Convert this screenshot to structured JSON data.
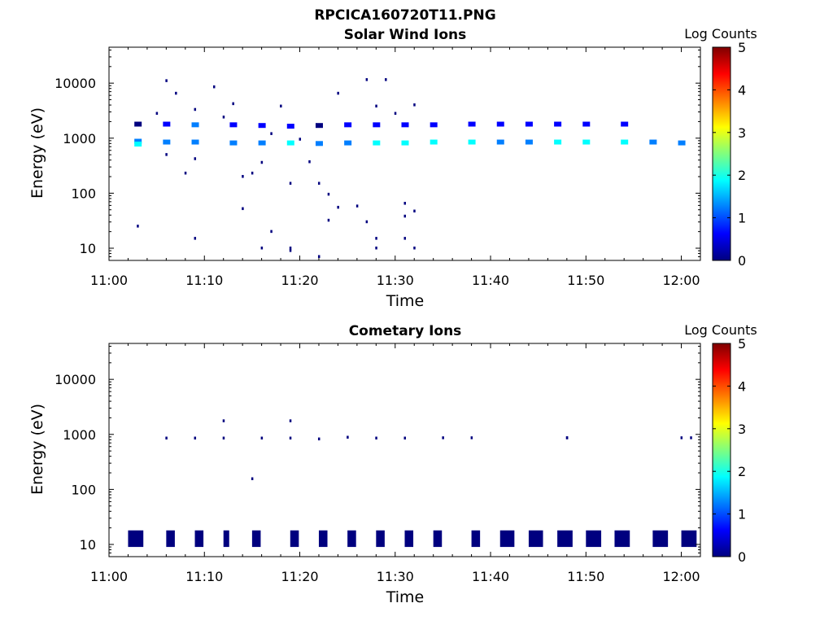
{
  "figure": {
    "title": "RPCICA160720T11.PNG",
    "colors": {
      "low": "#00007f",
      "scale": [
        "#00007f",
        "#0000ff",
        "#007fff",
        "#00ffff",
        "#7fff7f",
        "#ffff00",
        "#ff7f00",
        "#ff0000",
        "#7f0000"
      ]
    }
  },
  "chart_data": [
    {
      "type": "heatmap",
      "title": "Solar Wind Ions",
      "xlabel": "Time",
      "ylabel": "Energy (eV)",
      "yscale": "log",
      "xlim": [
        "11:00",
        "12:02"
      ],
      "ylim": [
        6,
        45000
      ],
      "xticks": [
        "11:00",
        "11:10",
        "11:20",
        "11:30",
        "11:40",
        "11:50",
        "12:00"
      ],
      "yticks": [
        "10",
        "100",
        "1000",
        "10000"
      ],
      "colorbar": {
        "label": "Log Counts",
        "min": 0,
        "max": 5,
        "ticks": [
          "0",
          "1",
          "2",
          "3",
          "4",
          "5"
        ]
      },
      "cells": [
        {
          "t": "11:03",
          "e": 1800,
          "v": 0.3
        },
        {
          "t": "11:03",
          "e": 880,
          "v": 1.5
        },
        {
          "t": "11:03",
          "e": 780,
          "v": 1.8
        },
        {
          "t": "11:06",
          "e": 1800,
          "v": 0.5
        },
        {
          "t": "11:06",
          "e": 850,
          "v": 1.2
        },
        {
          "t": "11:09",
          "e": 1750,
          "v": 1.1
        },
        {
          "t": "11:09",
          "e": 850,
          "v": 1.3
        },
        {
          "t": "11:13",
          "e": 1750,
          "v": 0.4
        },
        {
          "t": "11:13",
          "e": 820,
          "v": 1.4
        },
        {
          "t": "11:16",
          "e": 1700,
          "v": 0.6
        },
        {
          "t": "11:16",
          "e": 820,
          "v": 1.1
        },
        {
          "t": "11:19",
          "e": 1650,
          "v": 0.9
        },
        {
          "t": "11:19",
          "e": 820,
          "v": 1.6
        },
        {
          "t": "11:22",
          "e": 1700,
          "v": 0.3
        },
        {
          "t": "11:22",
          "e": 800,
          "v": 1.3
        },
        {
          "t": "11:25",
          "e": 1750,
          "v": 0.4
        },
        {
          "t": "11:25",
          "e": 820,
          "v": 1.5
        },
        {
          "t": "11:28",
          "e": 1750,
          "v": 0.4
        },
        {
          "t": "11:28",
          "e": 820,
          "v": 1.6
        },
        {
          "t": "11:31",
          "e": 1750,
          "v": 0.4
        },
        {
          "t": "11:31",
          "e": 820,
          "v": 1.8
        },
        {
          "t": "11:34",
          "e": 1750,
          "v": 0.6
        },
        {
          "t": "11:34",
          "e": 850,
          "v": 1.6
        },
        {
          "t": "11:38",
          "e": 1800,
          "v": 0.5
        },
        {
          "t": "11:38",
          "e": 850,
          "v": 1.6
        },
        {
          "t": "11:41",
          "e": 1800,
          "v": 0.6
        },
        {
          "t": "11:41",
          "e": 850,
          "v": 1.5
        },
        {
          "t": "11:44",
          "e": 1800,
          "v": 0.5
        },
        {
          "t": "11:44",
          "e": 850,
          "v": 1.4
        },
        {
          "t": "11:47",
          "e": 1800,
          "v": 0.4
        },
        {
          "t": "11:47",
          "e": 850,
          "v": 1.6
        },
        {
          "t": "11:50",
          "e": 1800,
          "v": 0.5
        },
        {
          "t": "11:50",
          "e": 850,
          "v": 1.6
        },
        {
          "t": "11:54",
          "e": 1800,
          "v": 0.4
        },
        {
          "t": "11:54",
          "e": 850,
          "v": 1.6
        },
        {
          "t": "11:57",
          "e": 850,
          "v": 1.4
        },
        {
          "t": "12:00",
          "e": 820,
          "v": 1.2
        }
      ],
      "sparse": [
        {
          "t": "11:05",
          "e": 2800
        },
        {
          "t": "11:06",
          "e": 11000
        },
        {
          "t": "11:07",
          "e": 6500
        },
        {
          "t": "11:06",
          "e": 500
        },
        {
          "t": "11:08",
          "e": 230
        },
        {
          "t": "11:09",
          "e": 3300
        },
        {
          "t": "11:09",
          "e": 420
        },
        {
          "t": "11:11",
          "e": 8500
        },
        {
          "t": "11:12",
          "e": 2400
        },
        {
          "t": "11:13",
          "e": 4200
        },
        {
          "t": "11:14",
          "e": 200
        },
        {
          "t": "11:14",
          "e": 52
        },
        {
          "t": "11:15",
          "e": 230
        },
        {
          "t": "11:16",
          "e": 360
        },
        {
          "t": "11:17",
          "e": 1200
        },
        {
          "t": "11:18",
          "e": 3800
        },
        {
          "t": "11:19",
          "e": 150
        },
        {
          "t": "11:20",
          "e": 950
        },
        {
          "t": "11:21",
          "e": 370
        },
        {
          "t": "11:22",
          "e": 150
        },
        {
          "t": "11:23",
          "e": 95
        },
        {
          "t": "11:24",
          "e": 6500
        },
        {
          "t": "11:24",
          "e": 55
        },
        {
          "t": "11:26",
          "e": 58
        },
        {
          "t": "11:27",
          "e": 11500
        },
        {
          "t": "11:28",
          "e": 3800
        },
        {
          "t": "11:29",
          "e": 11500
        },
        {
          "t": "11:30",
          "e": 2800
        },
        {
          "t": "11:31",
          "e": 38
        },
        {
          "t": "11:32",
          "e": 4000
        },
        {
          "t": "11:32",
          "e": 47
        },
        {
          "t": "11:31",
          "e": 65
        },
        {
          "t": "11:03",
          "e": 25
        },
        {
          "t": "11:09",
          "e": 15
        },
        {
          "t": "11:16",
          "e": 10
        },
        {
          "t": "11:17",
          "e": 20
        },
        {
          "t": "11:19",
          "e": 10
        },
        {
          "t": "11:19",
          "e": 9
        },
        {
          "t": "11:22",
          "e": 7
        },
        {
          "t": "11:23",
          "e": 32
        },
        {
          "t": "11:27",
          "e": 30
        },
        {
          "t": "11:28",
          "e": 15
        },
        {
          "t": "11:28",
          "e": 10
        },
        {
          "t": "11:31",
          "e": 15
        },
        {
          "t": "11:32",
          "e": 10
        }
      ]
    },
    {
      "type": "heatmap",
      "title": "Cometary Ions",
      "xlabel": "Time",
      "ylabel": "Energy (eV)",
      "yscale": "log",
      "xlim": [
        "11:00",
        "12:02"
      ],
      "ylim": [
        6,
        45000
      ],
      "xticks": [
        "11:00",
        "11:10",
        "11:20",
        "11:30",
        "11:40",
        "11:50",
        "12:00"
      ],
      "yticks": [
        "10",
        "100",
        "1000",
        "10000"
      ],
      "colorbar": {
        "label": "Log Counts",
        "min": 0,
        "max": 5,
        "ticks": [
          "0",
          "1",
          "2",
          "3",
          "4",
          "5"
        ]
      },
      "cells": [],
      "sparse": [
        {
          "t": "11:06",
          "e": 850
        },
        {
          "t": "11:09",
          "e": 850
        },
        {
          "t": "11:12",
          "e": 850
        },
        {
          "t": "11:12",
          "e": 1750
        },
        {
          "t": "11:16",
          "e": 850
        },
        {
          "t": "11:19",
          "e": 850
        },
        {
          "t": "11:19",
          "e": 1750
        },
        {
          "t": "11:22",
          "e": 820
        },
        {
          "t": "11:25",
          "e": 880
        },
        {
          "t": "11:28",
          "e": 850
        },
        {
          "t": "11:31",
          "e": 850
        },
        {
          "t": "11:35",
          "e": 860
        },
        {
          "t": "11:38",
          "e": 860
        },
        {
          "t": "11:48",
          "e": 860
        },
        {
          "t": "11:48",
          "e": 860
        },
        {
          "t": "12:01",
          "e": 860
        },
        {
          "t": "12:00",
          "e": 860
        },
        {
          "t": "11:15",
          "e": 155
        }
      ],
      "low_energy_blocks": [
        {
          "t": "11:02",
          "w": 1.6
        },
        {
          "t": "11:06",
          "w": 0.9
        },
        {
          "t": "11:09",
          "w": 0.9
        },
        {
          "t": "11:12",
          "w": 0.6
        },
        {
          "t": "11:15",
          "w": 0.9
        },
        {
          "t": "11:19",
          "w": 0.9
        },
        {
          "t": "11:22",
          "w": 0.9
        },
        {
          "t": "11:25",
          "w": 0.9
        },
        {
          "t": "11:28",
          "w": 0.9
        },
        {
          "t": "11:31",
          "w": 0.9
        },
        {
          "t": "11:34",
          "w": 0.9
        },
        {
          "t": "11:38",
          "w": 0.9
        },
        {
          "t": "11:41",
          "w": 1.5
        },
        {
          "t": "11:44",
          "w": 1.5
        },
        {
          "t": "11:47",
          "w": 1.6
        },
        {
          "t": "11:50",
          "w": 1.6
        },
        {
          "t": "11:53",
          "w": 1.6
        },
        {
          "t": "11:57",
          "w": 1.6
        },
        {
          "t": "12:00",
          "w": 1.6
        }
      ]
    }
  ]
}
